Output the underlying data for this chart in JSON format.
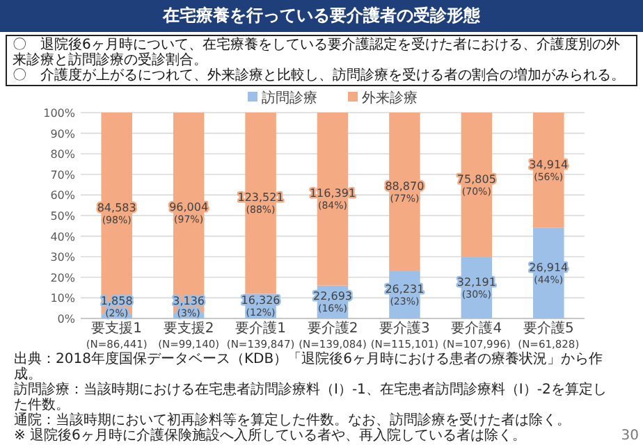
{
  "chart_data": {
    "type": "bar",
    "title": "在宅療養を行っている要介護者の受診形態",
    "subtitle": "〇　退院後6ヶ月時について、在宅療養をしている要介護認定を受けた者における、介護度別の外来診療と訪問診療の受診割合。",
    "categories": [
      "要支援1\n(N=86,441)",
      "要支援2\n(N=99,140)",
      "要介護1\n(N=139,847)",
      "要介護2\n(N=139,084)",
      "要介護3\n(N=115,101)",
      "要介護4\n(N=107,996)",
      "要介護5\n(N=61,828)"
    ],
    "stacked": true,
    "series": [
      {
        "name": "訪問診療",
        "color": "#9dc0e8",
        "values": [
          2,
          3,
          12,
          16,
          23,
          30,
          44
        ],
        "value_labels": [
          "1,858\n(2%)",
          "3,136\n(3%)",
          "16,326\n(12%)",
          "22,693\n(16%)",
          "26,231\n(23%)",
          "32,191\n(30%)",
          "26,914\n(44%)"
        ]
      },
      {
        "name": "外来診療",
        "color": "#f4aa82",
        "values": [
          98,
          97,
          88,
          84,
          77,
          70,
          56
        ],
        "value_labels": [
          "84,583\n(98%)",
          "96,004\n(97%)",
          "123,521\n(88%)",
          "116,391\n(84%)",
          "88,870\n(77%)",
          "75,805\n(70%)",
          "34,914\n(56%)"
        ]
      }
    ],
    "ylim": [
      0,
      100
    ],
    "yticks": [
      {
        "value": 0,
        "label": "0%"
      },
      {
        "value": 10,
        "label": "10%"
      },
      {
        "value": 20,
        "label": "20%"
      },
      {
        "value": 30,
        "label": "30%"
      },
      {
        "value": 40,
        "label": "40%"
      },
      {
        "value": 50,
        "label": "50%"
      },
      {
        "value": 60,
        "label": "60%"
      },
      {
        "value": 70,
        "label": "70%"
      },
      {
        "value": 80,
        "label": "80%"
      },
      {
        "value": 90,
        "label": "90%"
      },
      {
        "value": 100,
        "label": "100%"
      }
    ],
    "grid": "y",
    "legend": "top",
    "annotations": [
      "〇　介護度が上がるにつれて、外来診療と比較し、訪問診療を受ける者の割合の増加がみられる。",
      "出典：2018年度国保データベース（KDB）「退院後6ヶ月時における患者の療養状況」から作成。",
      "訪問診療：当該時期における在宅患者訪問診療料（Ⅰ）-1、在宅患者訪問診療料（Ⅰ）-2を算定した件数。",
      "通院：当該時期において初再診料等を算定した件数。なお、訪問診療を受けた者は除く。",
      "※ 退院後6ヶ月時に介護保険施設へ入所している者や、再入院している者は除く。",
      "30"
    ]
  }
}
